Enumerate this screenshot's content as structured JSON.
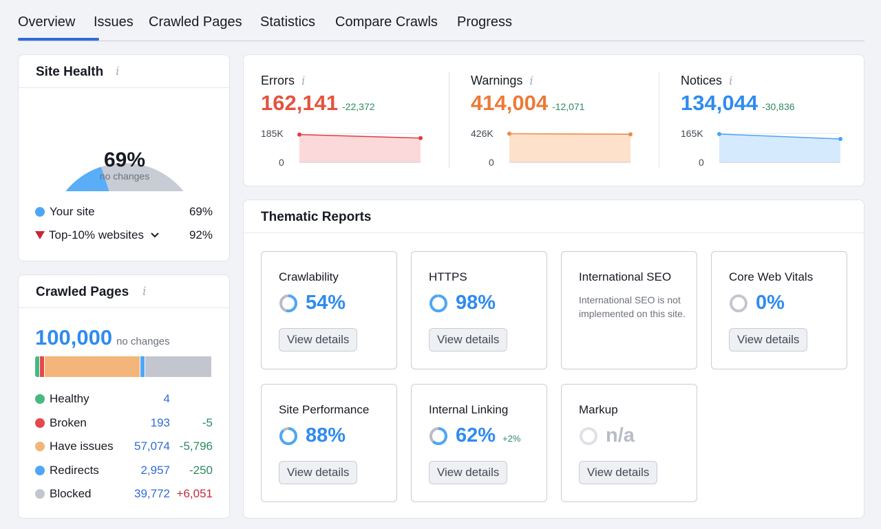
{
  "tabs": [
    "Overview",
    "Issues",
    "Crawled Pages",
    "Statistics",
    "Compare Crawls",
    "Progress"
  ],
  "site_health": {
    "title": "Site Health",
    "percent": "69%",
    "subtitle": "no changes",
    "your_site_label": "Your site",
    "your_site_value": "69%",
    "top_label": "Top-10% websites",
    "top_value": "92%",
    "gauge_fraction": 0.69,
    "colors": {
      "site": "#5aaef7",
      "rest": "#c8ccd4",
      "marker": "#c4283b"
    }
  },
  "crawled_pages": {
    "title": "Crawled Pages",
    "total": "100,000",
    "total_note": "no changes",
    "rows": [
      {
        "label": "Healthy",
        "value": "4",
        "delta": "",
        "color": "#47b881",
        "delta_class": ""
      },
      {
        "label": "Broken",
        "value": "193",
        "delta": "-5",
        "color": "#e5484d",
        "delta_class": "green"
      },
      {
        "label": "Have issues",
        "value": "57,074",
        "delta": "-5,796",
        "color": "#f3b57a",
        "delta_class": "green"
      },
      {
        "label": "Redirects",
        "value": "2,957",
        "delta": "-250",
        "color": "#4ea7f5",
        "delta_class": "green"
      },
      {
        "label": "Blocked",
        "value": "39,772",
        "delta": "+6,051",
        "color": "#c3c6ce",
        "delta_class": "red"
      }
    ]
  },
  "metrics": [
    {
      "label": "Errors",
      "value": "162,141",
      "delta": "-22,372",
      "color": "#e5533d",
      "fill": "#fbd9da",
      "line": "#e03d3d",
      "ymax": "185K",
      "ymin": "0",
      "start": 0.96,
      "end": 0.84
    },
    {
      "label": "Warnings",
      "value": "414,004",
      "delta": "-12,071",
      "color": "#ec7a36",
      "fill": "#fde1cb",
      "line": "#ef8a45",
      "ymax": "426K",
      "ymin": "0",
      "start": 0.99,
      "end": 0.97
    },
    {
      "label": "Notices",
      "value": "134,044",
      "delta": "-30,836",
      "color": "#2f8bf0",
      "fill": "#d6eafd",
      "line": "#4aa3f5",
      "ymax": "165K",
      "ymin": "0",
      "start": 0.98,
      "end": 0.81
    }
  ],
  "thematic": {
    "title": "Thematic Reports",
    "button_label": "View details",
    "cards": [
      {
        "title": "Crawlability",
        "score": "54%",
        "fraction": 0.54,
        "extra": "",
        "note": "",
        "button": true
      },
      {
        "title": "HTTPS",
        "score": "98%",
        "fraction": 0.98,
        "extra": "",
        "note": "",
        "button": true
      },
      {
        "title": "International SEO",
        "score": "",
        "fraction": 0,
        "extra": "",
        "note": "International SEO is not implemented on this site.",
        "button": false
      },
      {
        "title": "Core Web Vitals",
        "score": "0%",
        "fraction": 0,
        "extra": "",
        "note": "",
        "button": true
      },
      {
        "title": "Site Performance",
        "score": "88%",
        "fraction": 0.88,
        "extra": "",
        "note": "",
        "button": true
      },
      {
        "title": "Internal Linking",
        "score": "62%",
        "fraction": 0.62,
        "extra": "+2%",
        "note": "",
        "button": true
      },
      {
        "title": "Markup",
        "score": "n/a",
        "fraction": 0,
        "extra": "",
        "note": "",
        "button": true
      }
    ]
  }
}
